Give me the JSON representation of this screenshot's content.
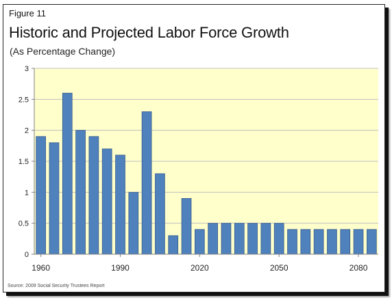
{
  "figure_label": "Figure 11",
  "title": "Historic and Projected Labor Force Growth",
  "subtitle": "(As Percentage Change)",
  "source": "Source: 2009 Social Security Trustees Report",
  "colors": {
    "plot_background": "#FFFFCC",
    "bar_fill": "#4F81BD",
    "bar_stroke": "#385D8A",
    "grid": "#BFBFBF"
  },
  "chart_data": {
    "type": "bar",
    "title": "Historic and Projected Labor Force Growth",
    "subtitle": "(As Percentage Change)",
    "xlabel": "",
    "ylabel": "",
    "ylim": [
      0,
      3
    ],
    "yticks": [
      "0",
      "0.5",
      "1",
      "1.5",
      "2",
      "2.5",
      "3"
    ],
    "grid": true,
    "x_tick_labels": [
      {
        "index": 0,
        "label": "1960"
      },
      {
        "index": 6,
        "label": "1990"
      },
      {
        "index": 12,
        "label": "2020"
      },
      {
        "index": 18,
        "label": "2050"
      },
      {
        "index": 24,
        "label": "2080"
      }
    ],
    "values": [
      1.9,
      1.8,
      2.6,
      2.0,
      1.9,
      1.7,
      1.6,
      1.0,
      2.3,
      1.3,
      0.3,
      0.9,
      0.4,
      0.5,
      0.5,
      0.5,
      0.5,
      0.5,
      0.5,
      0.4,
      0.4,
      0.4,
      0.4,
      0.4,
      0.4,
      0.4
    ]
  }
}
